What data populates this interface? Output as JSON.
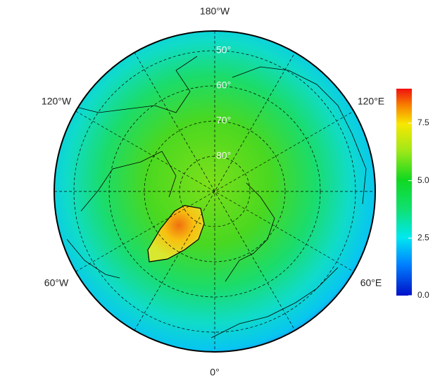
{
  "map": {
    "longitude_labels": [
      "180°W",
      "120°E",
      "60°E",
      "0°",
      "60°W",
      "120°W"
    ],
    "latitude_labels": [
      {
        "value": 50,
        "label": "50°"
      },
      {
        "value": 60,
        "label": "60°"
      },
      {
        "value": 70,
        "label": "70°"
      },
      {
        "value": 80,
        "label": "80°"
      }
    ],
    "colorbar": {
      "lim": [
        0,
        9
      ],
      "ticks": [
        {
          "value": 0,
          "label": "0.0"
        },
        2.5,
        {
          "value": 5,
          "label": "5.0"
        },
        7.5
      ]
    }
  }
}
